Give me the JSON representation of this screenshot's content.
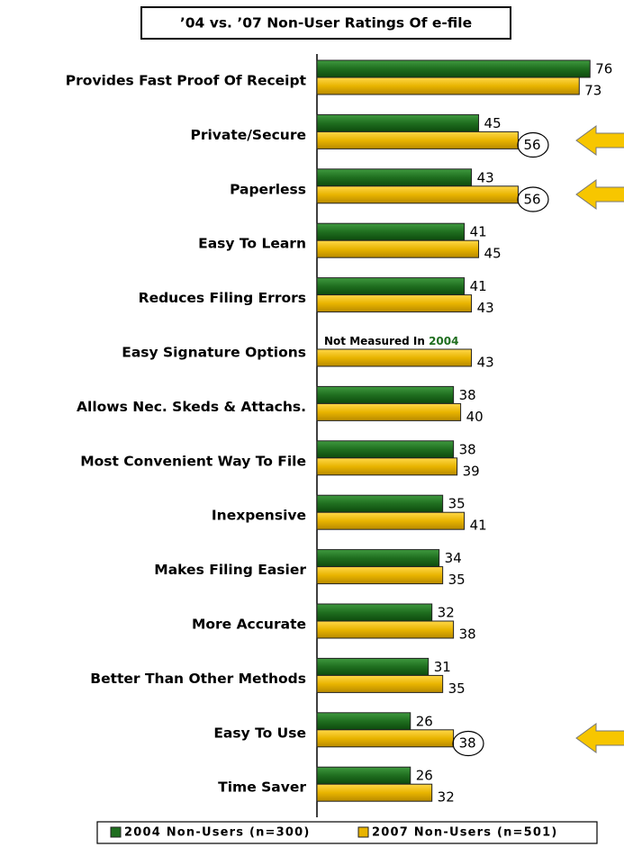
{
  "chart_data": {
    "type": "hbar",
    "title": "’04 vs. ’07 Non-User Ratings Of e-file",
    "categories": [
      "Provides Fast Proof Of Receipt",
      "Private/Secure",
      "Paperless",
      "Easy To Learn",
      "Reduces Filing Errors",
      "Easy Signature Options",
      "Allows Nec. Skeds & Attachs.",
      "Most Convenient Way To File",
      "Inexpensive",
      "Makes Filing Easier",
      "More Accurate",
      "Better Than Other Methods",
      "Easy To Use",
      "Time Saver"
    ],
    "series": [
      {
        "name": "2004 Non-Users (n=300)",
        "color": "#1f6e1f",
        "values": [
          76,
          45,
          43,
          41,
          41,
          null,
          38,
          38,
          35,
          34,
          32,
          31,
          26,
          26
        ]
      },
      {
        "name": "2007 Non-Users (n=501)",
        "color": "#e8b400",
        "values": [
          73,
          56,
          56,
          45,
          43,
          43,
          40,
          39,
          41,
          35,
          38,
          35,
          38,
          32
        ]
      }
    ],
    "annotation": [
      "Not Measured In ",
      "2004"
    ],
    "legend": "bottom"
  }
}
